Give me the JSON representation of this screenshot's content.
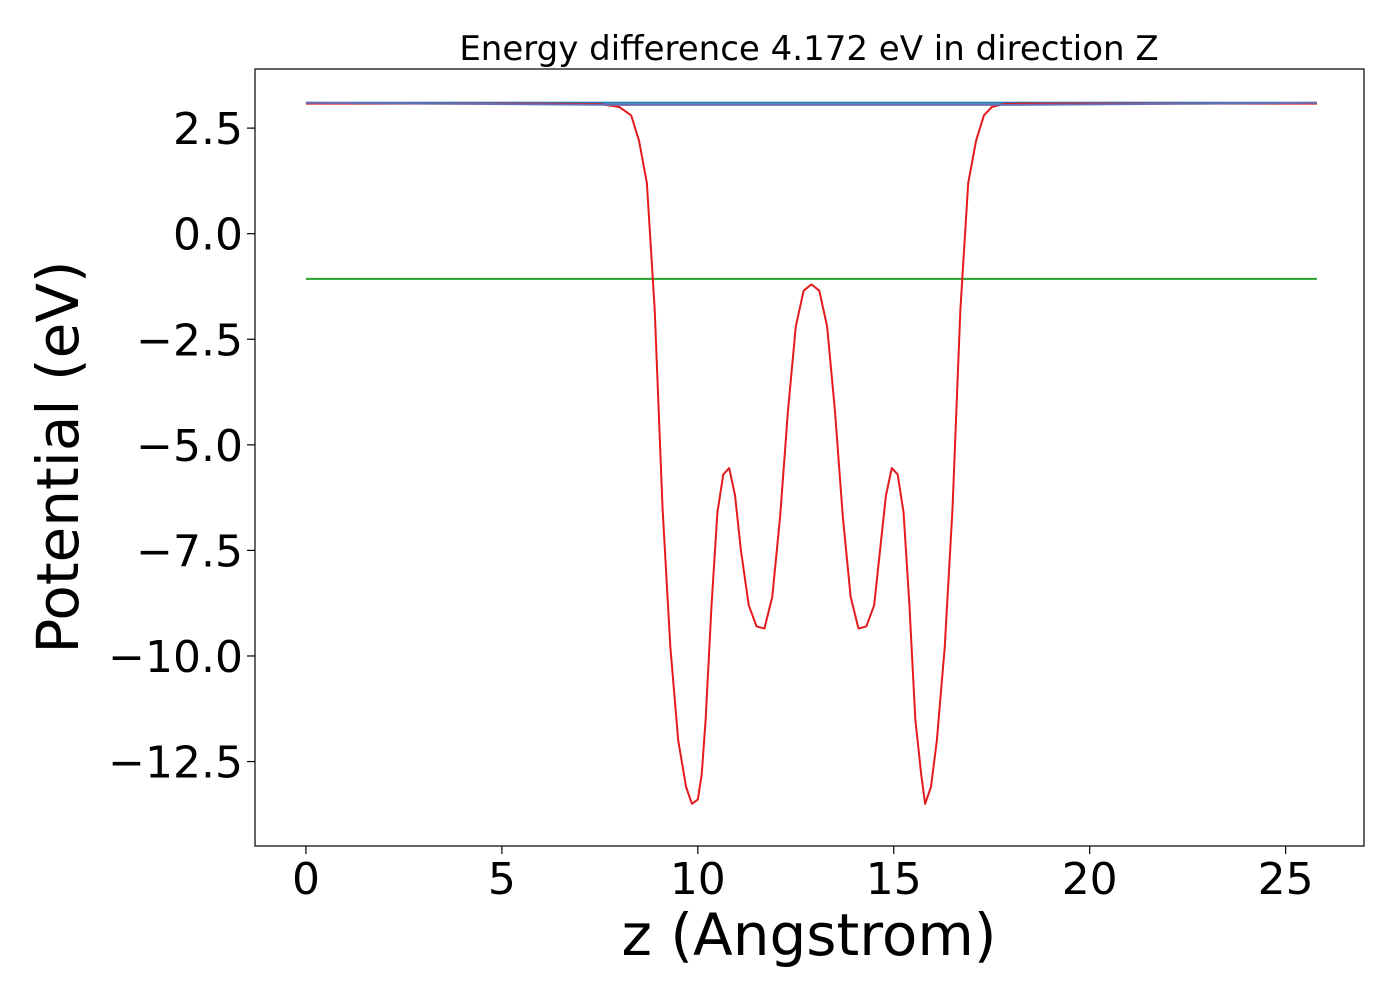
{
  "chart_data": {
    "type": "line",
    "title": "Energy difference 4.172 eV in direction Z",
    "xlabel": "z (Angstrom)",
    "ylabel": "Potential (eV)",
    "xlim": [
      -1.3,
      27.0
    ],
    "ylim": [
      -14.5,
      3.9
    ],
    "xticks": [
      0,
      5,
      10,
      15,
      20,
      25
    ],
    "xtick_labels": [
      "0",
      "5",
      "10",
      "15",
      "20",
      "25"
    ],
    "yticks": [
      2.5,
      0.0,
      -2.5,
      -5.0,
      -7.5,
      -10.0,
      -12.5
    ],
    "ytick_labels": [
      "2.5",
      "0.0",
      "−2.5",
      "−5.0",
      "−7.5",
      "−10.0",
      "−12.5"
    ],
    "grid": false,
    "series": [
      {
        "color": "#1f77b4",
        "x": [
          0.0,
          25.8
        ],
        "y": [
          3.1,
          3.1
        ]
      },
      {
        "color": "#2ca02c",
        "x": [
          0.0,
          25.8
        ],
        "y": [
          -1.07,
          -1.07
        ]
      },
      {
        "color": "#e41a1c",
        "x": [
          0.0,
          5.0,
          7.5,
          8.0,
          8.3,
          8.5,
          8.7,
          8.9,
          9.1,
          9.3,
          9.5,
          9.7,
          9.85,
          10.0,
          10.1,
          10.2,
          10.35,
          10.5,
          10.65,
          10.8,
          10.95,
          11.1,
          11.3,
          11.5,
          11.7,
          11.9,
          12.1,
          12.3,
          12.5,
          12.7,
          12.9,
          13.1,
          13.3,
          13.5,
          13.7,
          13.9,
          14.1,
          14.3,
          14.5,
          14.65,
          14.8,
          14.95,
          15.1,
          15.25,
          15.4,
          15.55,
          15.7,
          15.8,
          15.95,
          16.1,
          16.3,
          16.5,
          16.7,
          16.9,
          17.1,
          17.3,
          17.5,
          17.8,
          18.3,
          20.8,
          25.8
        ],
        "y": [
          3.08,
          3.08,
          3.07,
          3.0,
          2.8,
          2.2,
          1.2,
          -1.8,
          -6.5,
          -9.8,
          -12.0,
          -13.1,
          -13.5,
          -13.4,
          -12.8,
          -11.5,
          -8.8,
          -6.6,
          -5.7,
          -5.55,
          -6.2,
          -7.5,
          -8.8,
          -9.3,
          -9.35,
          -8.6,
          -6.7,
          -4.2,
          -2.2,
          -1.35,
          -1.2,
          -1.35,
          -2.2,
          -4.2,
          -6.7,
          -8.6,
          -9.35,
          -9.3,
          -8.8,
          -7.5,
          -6.2,
          -5.55,
          -5.7,
          -6.6,
          -8.8,
          -11.5,
          -12.8,
          -13.5,
          -13.1,
          -12.0,
          -9.8,
          -6.5,
          -1.8,
          1.2,
          2.2,
          2.8,
          3.0,
          3.07,
          3.08,
          3.08,
          3.08
        ]
      },
      {
        "color": "#6a6fb4",
        "x": [
          0.0,
          8.0,
          18.0,
          25.8
        ],
        "y": [
          3.1,
          3.05,
          3.05,
          3.1
        ]
      }
    ]
  }
}
